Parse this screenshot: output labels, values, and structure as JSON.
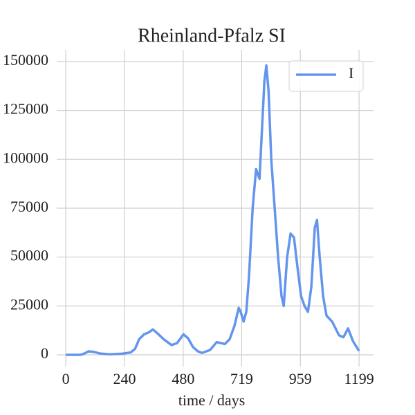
{
  "chart_data": {
    "type": "line",
    "title": "Rheinland-Pfalz SI",
    "xlabel": "time / days",
    "x": [
      0,
      60,
      75,
      93,
      115,
      140,
      180,
      230,
      265,
      283,
      300,
      320,
      340,
      356,
      375,
      400,
      433,
      455,
      481,
      500,
      520,
      540,
      557,
      590,
      617,
      635,
      650,
      670,
      690,
      707,
      715,
      727,
      738,
      749,
      764,
      778,
      792,
      800,
      812,
      820,
      829,
      840,
      854,
      868,
      882,
      891,
      905,
      919,
      933,
      947,
      962,
      976,
      990,
      1004,
      1018,
      1027,
      1038,
      1052,
      1066,
      1089,
      1117,
      1135,
      1154,
      1174,
      1199
    ],
    "series": [
      {
        "name": "I",
        "color": "#6495ed",
        "values": [
          0,
          0,
          600,
          1800,
          1500,
          700,
          300,
          600,
          1200,
          3000,
          8000,
          10500,
          11500,
          13000,
          11000,
          8000,
          5000,
          6000,
          10500,
          8500,
          4000,
          1800,
          1000,
          2500,
          6500,
          6000,
          5500,
          8000,
          15000,
          24000,
          22000,
          17000,
          22000,
          40000,
          75000,
          95000,
          90000,
          110000,
          140000,
          148000,
          135000,
          100000,
          75000,
          50000,
          30000,
          25000,
          50000,
          62000,
          60000,
          45000,
          30000,
          25000,
          22000,
          35000,
          65000,
          69000,
          50000,
          30000,
          20000,
          17000,
          10000,
          9000,
          13500,
          7000,
          2000
        ]
      }
    ],
    "xlim": [
      -37,
      1258
    ],
    "ylim": [
      -6000,
      156000
    ],
    "xticks": [
      0,
      240,
      480,
      719,
      959,
      1199
    ],
    "yticks": [
      0,
      25000,
      50000,
      75000,
      100000,
      125000,
      150000
    ],
    "grid": true,
    "legend": "upper right"
  }
}
